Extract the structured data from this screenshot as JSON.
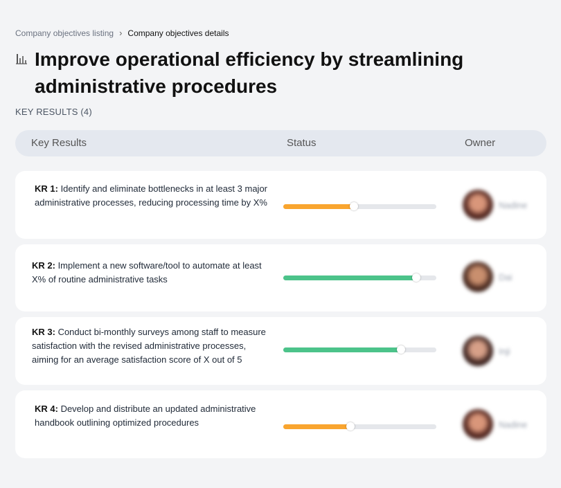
{
  "breadcrumb": {
    "parent": "Company objectives listing",
    "separator": "›",
    "current": "Company objectives details"
  },
  "page": {
    "title": "Improve operational efficiency by streamlining administrative procedures",
    "icon": "bar-chart-icon",
    "section_label": "KEY RESULTS (4)"
  },
  "table": {
    "headers": {
      "key_results": "Key Results",
      "status": "Status",
      "owner": "Owner"
    }
  },
  "colors": {
    "orange": "#f9a52f",
    "green": "#4cc38a"
  },
  "key_results": [
    {
      "label": "KR 1:",
      "text": " Identify and eliminate bottlenecks in at least 3 major administrative processes, reducing processing time by X%",
      "progress": 0.46,
      "color": "#f9a52f",
      "owner": "Nadine"
    },
    {
      "label": "KR 2:",
      "text": " Implement a new software/tool to automate at least X% of routine administrative tasks",
      "progress": 0.87,
      "color": "#4cc38a",
      "owner": "Dai"
    },
    {
      "label": "KR 3:",
      "text": " Conduct bi-monthly surveys among staff to measure satisfaction with the revised administrative processes, aiming for an average satisfaction score of X out of 5",
      "progress": 0.77,
      "color": "#4cc38a",
      "owner": "Inji"
    },
    {
      "label": "KR 4:",
      "text": " Develop and distribute an updated administrative handbook outlining optimized procedures",
      "progress": 0.44,
      "color": "#f9a52f",
      "owner": "Nadine"
    }
  ]
}
